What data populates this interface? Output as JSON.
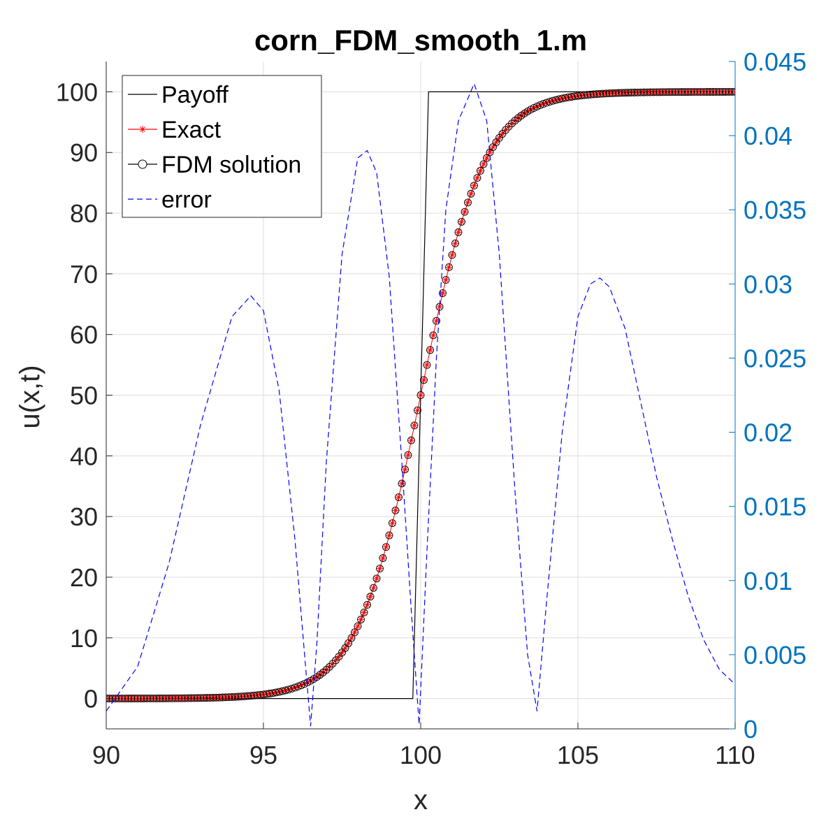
{
  "chart_data": {
    "type": "line",
    "title": "corn_FDM_smooth_1.m",
    "xlabel": "x",
    "ylabel": "u(x,t)",
    "xlim": [
      90,
      110
    ],
    "ylim": [
      -5,
      105
    ],
    "y2lim": [
      0,
      0.045
    ],
    "xticks": [
      90,
      95,
      100,
      105,
      110
    ],
    "yticks": [
      0,
      10,
      20,
      30,
      40,
      50,
      60,
      70,
      80,
      90,
      100
    ],
    "y2ticks": [
      "0",
      "0.005",
      "0.01",
      "0.015",
      "0.02",
      "0.025",
      "0.03",
      "0.035",
      "0.04",
      "0.045"
    ],
    "grid": true,
    "legend_position": "top-left",
    "colors": {
      "payoff": "#000000",
      "exact": "#FF0000",
      "fdm": "#000000",
      "error": "#0000FF",
      "right_axis": "#0072BD"
    },
    "series": [
      {
        "name": "Payoff",
        "axis": "left",
        "style": "solid-line",
        "x": [
          90,
          99.75,
          100.25,
          110
        ],
        "y": [
          0,
          0,
          100,
          100
        ]
      },
      {
        "name": "Exact",
        "axis": "left",
        "style": "red-star-markers",
        "x_start": 90,
        "x_end": 110,
        "points": 201,
        "curve": "logistic",
        "center": 100,
        "scale": 1.0,
        "max": 100
      },
      {
        "name": "FDM solution",
        "axis": "left",
        "style": "black-circle-markers",
        "x_start": 90,
        "x_end": 110,
        "points": 201,
        "curve": "logistic",
        "center": 100,
        "scale": 1.0,
        "max": 100
      },
      {
        "name": "error",
        "axis": "right",
        "style": "blue-dashed-line",
        "x": [
          90,
          91,
          92,
          93,
          94,
          94.6,
          95,
          95.5,
          96,
          96.3,
          96.5,
          96.7,
          97,
          97.5,
          98,
          98.3,
          98.6,
          99,
          99.4,
          99.7,
          99.95,
          100.2,
          100.5,
          100.8,
          101.2,
          101.7,
          102.1,
          102.5,
          103,
          103.4,
          103.7,
          104,
          104.5,
          105,
          105.4,
          105.7,
          106,
          106.5,
          107,
          107.5,
          108,
          108.5,
          109,
          109.5,
          110
        ],
        "y": [
          0.0012,
          0.0042,
          0.0112,
          0.0205,
          0.0278,
          0.0292,
          0.0282,
          0.0228,
          0.0128,
          0.0052,
          0.0002,
          0.0058,
          0.018,
          0.032,
          0.0385,
          0.039,
          0.0375,
          0.0305,
          0.018,
          0.008,
          0.0003,
          0.012,
          0.025,
          0.035,
          0.041,
          0.0435,
          0.041,
          0.032,
          0.016,
          0.005,
          0.0012,
          0.0085,
          0.02,
          0.0278,
          0.03,
          0.0304,
          0.0298,
          0.027,
          0.022,
          0.017,
          0.0128,
          0.009,
          0.006,
          0.004,
          0.003
        ]
      }
    ]
  }
}
